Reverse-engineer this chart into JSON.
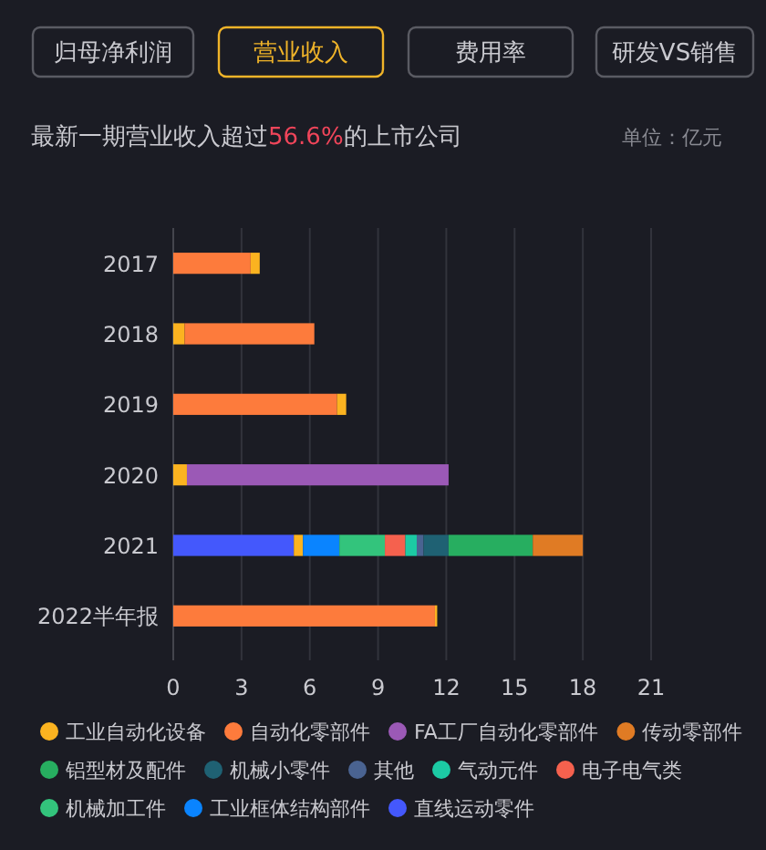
{
  "chart_data": {
    "type": "bar",
    "orientation": "horizontal",
    "stacked": true,
    "title": "最新一期营业收入超过56.6%的上市公司",
    "annotations": [
      "归母净利润",
      "营业收入",
      "费用率",
      "研发VS销售",
      "单位：亿元"
    ],
    "categories": [
      "2017",
      "2018",
      "2019",
      "2020",
      "2021",
      "2022半年报"
    ],
    "series": [
      {
        "name": "直线运动零件",
        "color": "#4458fc",
        "values": [
          null,
          null,
          null,
          null,
          5.3,
          null
        ]
      },
      {
        "color": "#fbb320",
        "values": [
          null,
          0.5,
          null,
          0.6,
          0.4,
          null
        ]
      },
      {
        "name": "工业框体结构部件",
        "color": "#0a84ff",
        "values": [
          null,
          null,
          null,
          null,
          1.6,
          null
        ]
      },
      {
        "name": "机械加工件",
        "color": "#33c47c",
        "values": [
          null,
          null,
          null,
          null,
          2.0,
          null
        ]
      },
      {
        "name": "电子电气类",
        "color": "#f5614e",
        "values": [
          null,
          null,
          null,
          null,
          0.9,
          null
        ]
      },
      {
        "name": "气动元件",
        "color": "#1ccaa4",
        "values": [
          null,
          null,
          null,
          null,
          0.5,
          null
        ]
      },
      {
        "name": "其他",
        "color": "#4a6391",
        "values": [
          null,
          null,
          null,
          null,
          0.3,
          null
        ]
      },
      {
        "name": "机械小零件",
        "color": "#1f6173",
        "values": [
          null,
          null,
          null,
          null,
          1.1,
          null
        ]
      },
      {
        "name": "铝型材及配件",
        "color": "#27ae60",
        "values": [
          null,
          null,
          null,
          null,
          3.7,
          null
        ]
      },
      {
        "name": "传动零部件",
        "color": "#e07b24",
        "values": [
          null,
          null,
          null,
          null,
          2.2,
          null
        ]
      },
      {
        "name": "FA工厂自动化零部件",
        "color": "#9b59b6",
        "values": [
          null,
          null,
          null,
          11.5,
          null,
          null
        ]
      },
      {
        "name": "自动化零部件",
        "color": "#fd7b3c",
        "values": [
          3.4,
          5.7,
          7.2,
          null,
          null,
          11.5
        ]
      },
      {
        "name": "工业自动化设备",
        "color": "#fbb320",
        "values": [
          0.4,
          null,
          0.4,
          null,
          null,
          0.1
        ]
      }
    ],
    "xlim": [
      0,
      21
    ],
    "xticks": [
      0,
      3,
      6,
      9,
      12,
      15,
      18,
      21
    ],
    "grid": "x",
    "legend": "bottom"
  }
}
